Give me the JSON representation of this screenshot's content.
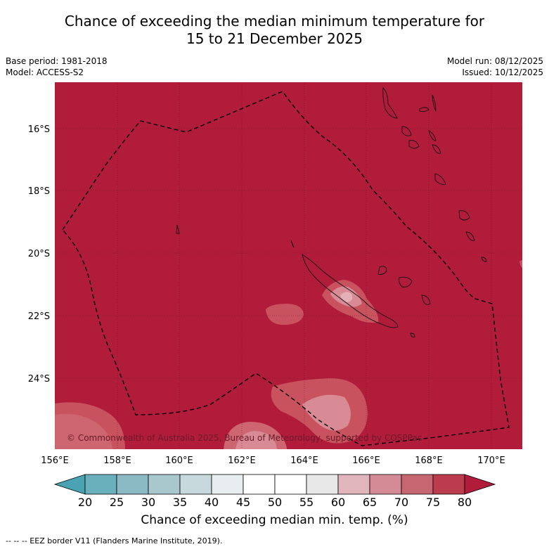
{
  "title_line1": "Chance of exceeding the median minimum temperature for",
  "title_line2": "15 to 21 December 2025",
  "base_period": "Base period: 1981-2018",
  "model": "Model: ACCESS-S2",
  "model_run": "Model run: 08/12/2025",
  "issued": "Issued: 10/12/2025",
  "copyright": "© Commonwealth of Australia 2025, Bureau of Meteorology, supported by COSPPac",
  "lat_labels": [
    "16°S",
    "18°S",
    "20°S",
    "22°S",
    "24°S"
  ],
  "lon_labels": [
    "156°E",
    "158°E",
    "160°E",
    "162°E",
    "164°E",
    "166°E",
    "168°E",
    "170°E"
  ],
  "colorbar": {
    "ticks": [
      "20",
      "25",
      "30",
      "35",
      "40",
      "45",
      "50",
      "55",
      "60",
      "65",
      "70",
      "75",
      "80"
    ],
    "label": "Chance of exceeding median min. temp. (%)",
    "colors": [
      "#6aafbc",
      "#8bb9c4",
      "#a8c8cd",
      "#c7d9dd",
      "#e8eeef",
      "#ffffff",
      "#ffffff",
      "#e8e8e8",
      "#e0b6bc",
      "#d48b95",
      "#c66670",
      "#bb3d4d"
    ],
    "low_color": "#4aa3b2",
    "high_color": "#b01c3a"
  },
  "map_background_color": "#b21c3b",
  "eez_legend": "--  --  -- EEZ border V11 (Flanders Marine Institute, 2019)."
}
